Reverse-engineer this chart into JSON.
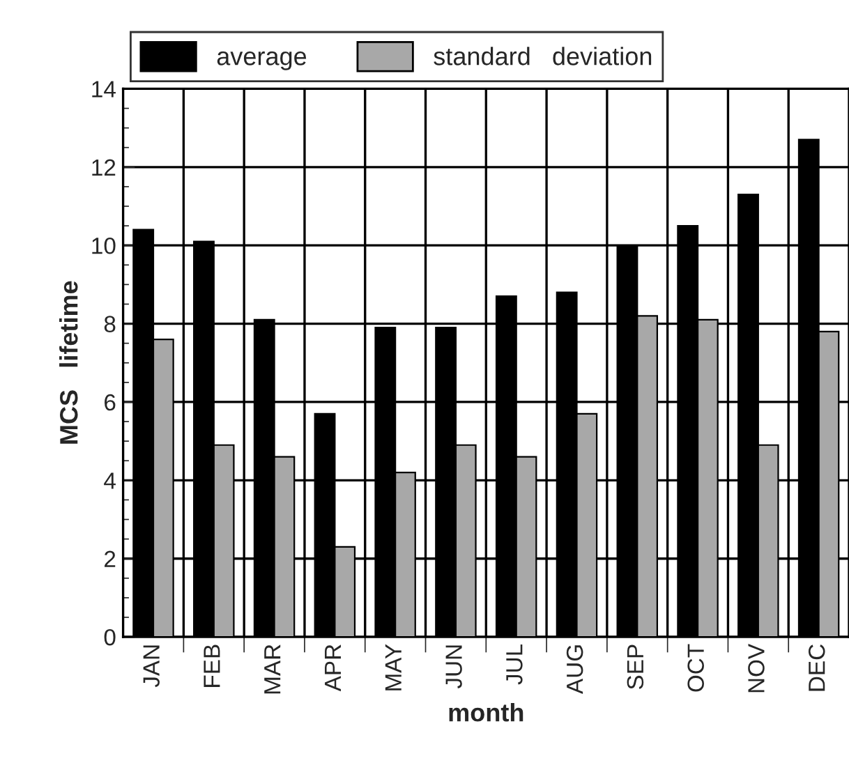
{
  "chart_data": {
    "type": "bar",
    "xlabel": "month",
    "ylabel": "MCS   lifetime",
    "categories": [
      "JAN",
      "FEB",
      "MAR",
      "APR",
      "MAY",
      "JUN",
      "JUL",
      "AUG",
      "SEP",
      "OCT",
      "NOV",
      "DEC"
    ],
    "series": [
      {
        "name": "average",
        "color": "#000000",
        "values": [
          10.4,
          10.1,
          8.1,
          5.7,
          7.9,
          7.9,
          8.7,
          8.8,
          10.0,
          10.5,
          11.3,
          12.7
        ]
      },
      {
        "name": "standard   deviation",
        "color": "#a8a8a8",
        "values": [
          7.6,
          4.9,
          4.6,
          2.3,
          4.2,
          4.9,
          4.6,
          5.7,
          8.2,
          8.1,
          4.9,
          7.8
        ]
      }
    ],
    "ylim": [
      0,
      14
    ],
    "yticks": [
      0,
      2,
      4,
      6,
      8,
      10,
      12,
      14
    ],
    "grid": true,
    "legend": "top"
  }
}
